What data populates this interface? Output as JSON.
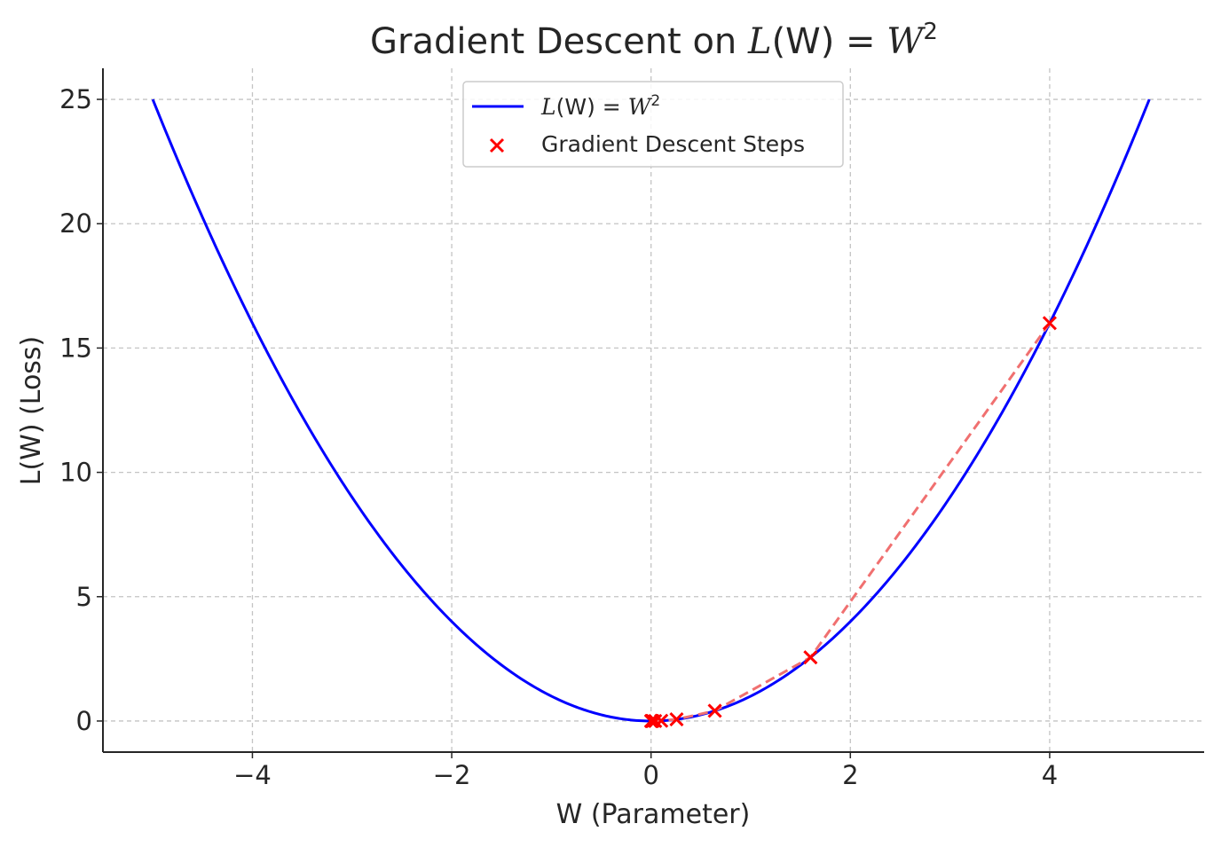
{
  "chart_data": {
    "type": "line",
    "title": {
      "prefix": "Gradient Descent on ",
      "math_lhs": "L",
      "math_paren": "(W)",
      "math_eq": " = ",
      "math_base": "W",
      "math_exp": "2"
    },
    "xlabel": "W (Parameter)",
    "ylabel": "L(W) (Loss)",
    "xlim": [
      -5.5,
      5.55
    ],
    "ylim": [
      -1.25,
      26.25
    ],
    "x_ticks": [
      -4,
      -2,
      0,
      2,
      4
    ],
    "x_tick_labels": [
      "−4",
      "−2",
      "0",
      "2",
      "4"
    ],
    "y_ticks": [
      0,
      5,
      10,
      15,
      20,
      25
    ],
    "y_tick_labels": [
      "0",
      "5",
      "10",
      "15",
      "20",
      "25"
    ],
    "grid": true,
    "legend_position": "top-center",
    "series": [
      {
        "name": "L(W) = W^2",
        "legend": {
          "lhs": "L",
          "paren": "(W)",
          "eq": " = ",
          "base": "W",
          "exp": "2"
        },
        "kind": "curve",
        "function": "x^2",
        "x_range": [
          -5,
          5
        ],
        "color": "#0000ff"
      },
      {
        "name": "Gradient Descent Steps",
        "kind": "scatter",
        "marker": "x",
        "color": "#ff0000",
        "connector_color": "#f07070",
        "connector_style": "dashed",
        "x": [
          4.0,
          1.6,
          0.64,
          0.256,
          0.1024,
          0.04096,
          0.016384,
          0.0065536,
          0.00262144,
          0.001048576
        ],
        "y": [
          16.0,
          2.56,
          0.4096,
          0.065536,
          0.01048576,
          0.0016777216,
          0.000268435456,
          4.29496729e-05,
          6.87194767e-06,
          1.09951163e-06
        ]
      }
    ]
  }
}
